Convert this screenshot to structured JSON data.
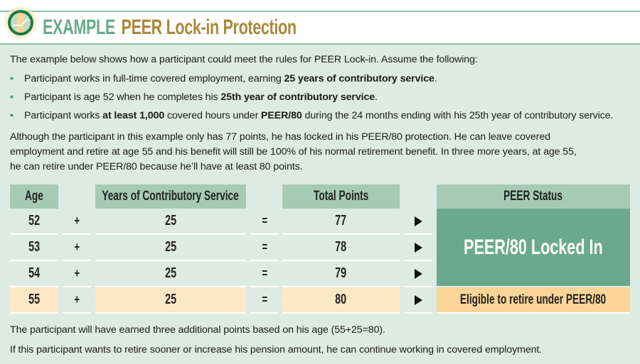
{
  "header": {
    "title_prefix": "EXAMPLE",
    "title": "PEER Lock-in Protection"
  },
  "intro": "The example below shows how a participant could meet the rules for PEER Lock-in. Assume the following:",
  "bullets": [
    {
      "a": "Participant works in full-time covered employment, earning ",
      "b": "25 years of contributory service",
      "c": "."
    },
    {
      "a": "Participant is age 52 when he completes his ",
      "b": "25th year of contributory service",
      "c": "."
    },
    {
      "a": "Participant works ",
      "b": "at least 1,000",
      "c": " covered hours under ",
      "d": "PEER/80",
      "e": " during the 24 months ending with his 25th year of contributory service."
    }
  ],
  "paragraph": [
    "Although the participant in this example only has 77 points, he has locked in his PEER/80 protection. He can leave covered",
    "employment and retire at age 55 and his benefit will still be 100% of his normal retirement benefit. In three more years, at age 55,",
    "he can retire under PEER/80 because he’ll have at least 80 points."
  ],
  "table": {
    "headers": {
      "age": "Age",
      "years": "Years of Contributory Service",
      "points": "Total Points",
      "status": "PEER Status"
    },
    "plus": "+",
    "equals": "=",
    "rows": [
      {
        "age": "52",
        "years": "25",
        "points": "77"
      },
      {
        "age": "53",
        "years": "25",
        "points": "78"
      },
      {
        "age": "54",
        "years": "25",
        "points": "79"
      },
      {
        "age": "55",
        "years": "25",
        "points": "80"
      }
    ],
    "status_locked": "PEER/80 Locked In",
    "status_eligible": "Eligible to retire under PEER/80"
  },
  "footer": [
    "The participant will have earned three additional points based on his age (55+25=80).",
    "If this participant wants to retire sooner or increase his pension amount, he can continue working in covered employment."
  ],
  "colors": {
    "accent_green": "#6aa98d",
    "header_cell": "#a6cbb5",
    "panel": "#deebe2",
    "gold": "#a88a3c",
    "peach": "#fde8c5",
    "peach_status": "#fbd597"
  }
}
